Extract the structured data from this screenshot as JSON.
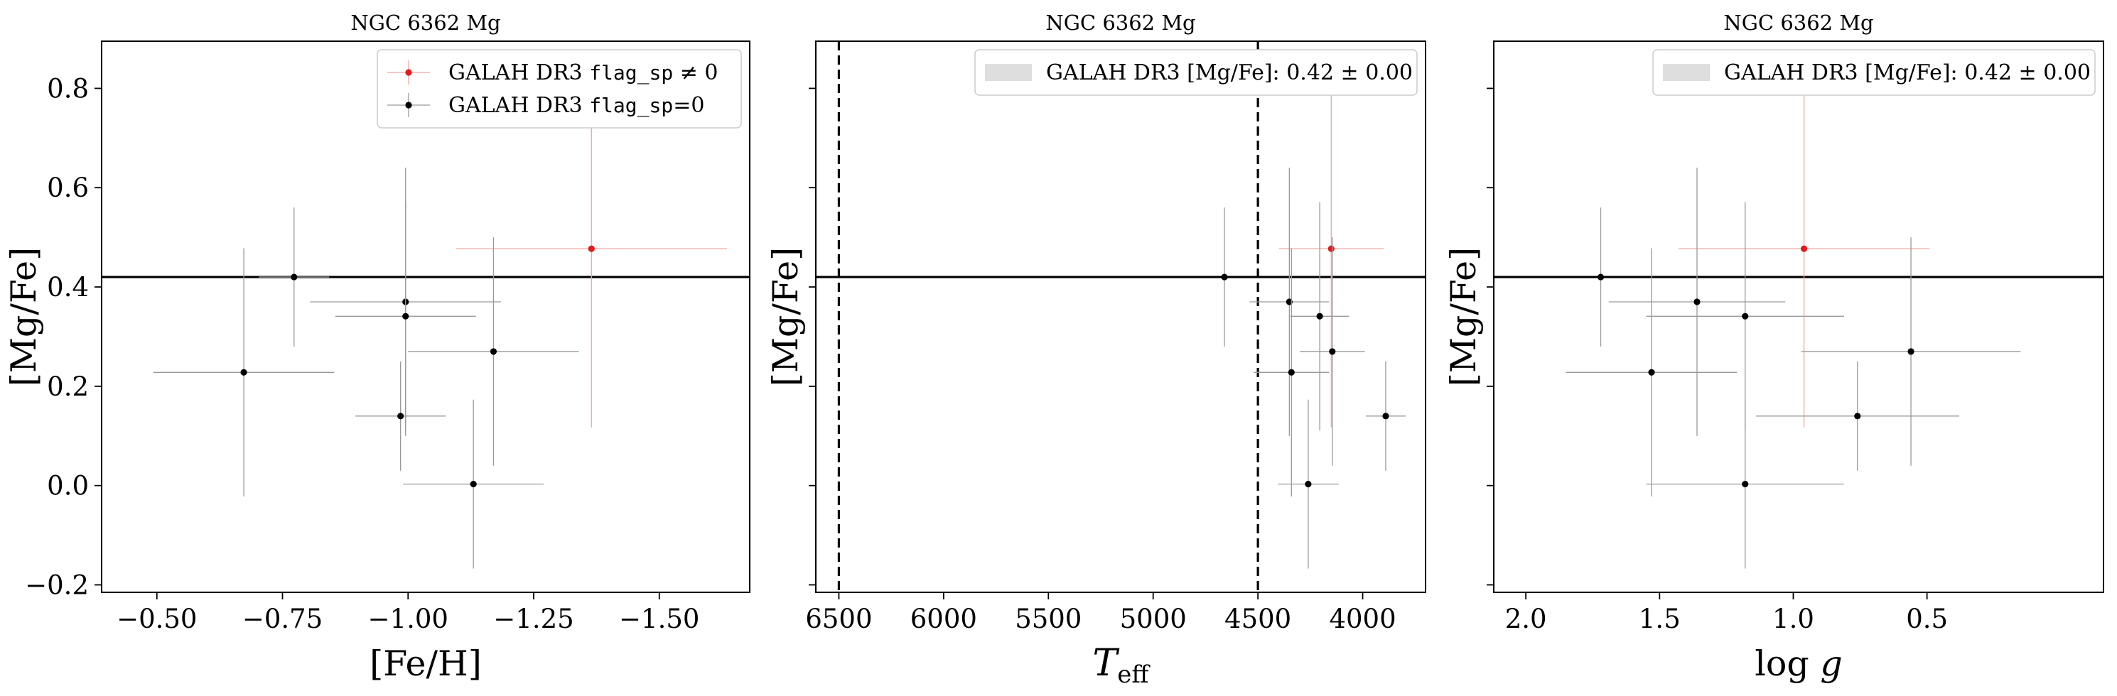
{
  "figure": {
    "layout": "1x3 panels",
    "shared_y_axis": true,
    "panels": 3
  },
  "colors": {
    "flagged": "#e31a1c",
    "flagged_errorbar": "#f2a3a3",
    "unflagged": "#000000",
    "unflagged_errorbar": "#999999",
    "mean_band": "#dedede",
    "mean_line": "#000000",
    "teff_limits": "#000000"
  },
  "chart_data": [
    {
      "type": "scatter",
      "title": "NGC 6362 Mg",
      "xlabel": "[Fe/H]",
      "ylabel": "[Mg/Fe]",
      "x_inverted": true,
      "xlim": [
        -0.39,
        -1.68
      ],
      "ylim": [
        -0.215,
        0.895
      ],
      "xticks": [
        -0.5,
        -0.75,
        -1.0,
        -1.25,
        -1.5
      ],
      "xtick_labels": [
        "−0.50",
        "−0.75",
        "−1.00",
        "−1.25",
        "−1.50"
      ],
      "yticks": [
        -0.2,
        0.0,
        0.2,
        0.4,
        0.6,
        0.8
      ],
      "ytick_labels": [
        "−0.2",
        "0.0",
        "0.2",
        "0.4",
        "0.6",
        "0.8"
      ],
      "show_ytick_labels": true,
      "legend_position": "top-right",
      "legend": [
        {
          "text_prefix": "GALAH DR3 ",
          "text_code": "flag_sp",
          "text_suffix": " ≠ 0",
          "series": "flagged"
        },
        {
          "text_prefix": "GALAH DR3 ",
          "text_code": "flag_sp",
          "text_suffix": "=0",
          "series": "unflagged"
        }
      ],
      "hlines": [
        {
          "y": 0.42,
          "label": ""
        }
      ],
      "vlines": [],
      "series": [
        {
          "name": "GALAH DR3 flag_sp ≠ 0",
          "key": "flagged",
          "points": [
            {
              "x": -1.365,
              "y": 0.477,
              "xerr": 0.27,
              "yerr": 0.36
            }
          ]
        },
        {
          "name": "GALAH DR3 flag_sp=0",
          "key": "unflagged",
          "points": [
            {
              "x": -0.673,
              "y": 0.228,
              "xerr": 0.18,
              "yerr": 0.25
            },
            {
              "x": -0.773,
              "y": 0.42,
              "xerr": 0.07,
              "yerr": 0.14
            },
            {
              "x": -0.985,
              "y": 0.14,
              "xerr": 0.09,
              "yerr": 0.11
            },
            {
              "x": -0.995,
              "y": 0.37,
              "xerr": 0.19,
              "yerr": 0.27
            },
            {
              "x": -0.995,
              "y": 0.341,
              "xerr": 0.14,
              "yerr": 0.23
            },
            {
              "x": -1.13,
              "y": 0.003,
              "xerr": 0.14,
              "yerr": 0.17
            },
            {
              "x": -1.17,
              "y": 0.27,
              "xerr": 0.17,
              "yerr": 0.23
            }
          ]
        }
      ]
    },
    {
      "type": "scatter",
      "title": "NGC 6362 Mg",
      "xlabel": "T_eff",
      "ylabel": "[Mg/Fe]",
      "x_inverted": true,
      "xlim": [
        6610,
        3700
      ],
      "ylim": [
        -0.215,
        0.895
      ],
      "xticks": [
        6500,
        6000,
        5500,
        5000,
        4500,
        4000
      ],
      "xtick_labels": [
        "6500",
        "6000",
        "5500",
        "5000",
        "4500",
        "4000"
      ],
      "yticks": [
        -0.2,
        0.0,
        0.2,
        0.4,
        0.6,
        0.8
      ],
      "show_ytick_labels": false,
      "legend_position": "top-right",
      "legend": [
        {
          "text_prefix": "GALAH DR3 [Mg/Fe]: ",
          "text_code": "",
          "text_suffix": "0.42 ± 0.00",
          "series": "band"
        }
      ],
      "hlines": [
        {
          "y": 0.42,
          "label": ""
        }
      ],
      "vlines": [
        {
          "x": 6500
        },
        {
          "x": 4500
        }
      ],
      "series": [
        {
          "name": "GALAH DR3 flag_sp ≠ 0",
          "key": "flagged",
          "points": [
            {
              "x": 4150,
              "y": 0.477,
              "xerr": 250,
              "yerr": 0.36
            }
          ]
        },
        {
          "name": "GALAH DR3 flag_sp=0",
          "key": "unflagged",
          "points": [
            {
              "x": 4660,
              "y": 0.42,
              "xerr": 0,
              "yerr": 0.14
            },
            {
              "x": 4350,
              "y": 0.37,
              "xerr": 190,
              "yerr": 0.27
            },
            {
              "x": 4205,
              "y": 0.341,
              "xerr": 140,
              "yerr": 0.23
            },
            {
              "x": 4340,
              "y": 0.228,
              "xerr": 180,
              "yerr": 0.25
            },
            {
              "x": 4145,
              "y": 0.27,
              "xerr": 155,
              "yerr": 0.23
            },
            {
              "x": 3890,
              "y": 0.14,
              "xerr": 95,
              "yerr": 0.11
            },
            {
              "x": 4260,
              "y": 0.003,
              "xerr": 145,
              "yerr": 0.17
            }
          ]
        }
      ]
    },
    {
      "type": "scatter",
      "title": "NGC 6362 Mg",
      "xlabel": "log g",
      "ylabel": "[Mg/Fe]",
      "x_inverted": true,
      "xlim": [
        2.12,
        -0.16
      ],
      "ylim": [
        -0.215,
        0.895
      ],
      "xticks": [
        2.0,
        1.5,
        1.0,
        0.5
      ],
      "xtick_labels": [
        "2.0",
        "1.5",
        "1.0",
        "0.5"
      ],
      "yticks": [
        -0.2,
        0.0,
        0.2,
        0.4,
        0.6,
        0.8
      ],
      "show_ytick_labels": false,
      "legend_position": "top-right",
      "legend": [
        {
          "text_prefix": "GALAH DR3 [Mg/Fe]: ",
          "text_code": "",
          "text_suffix": "0.42 ± 0.00",
          "series": "band"
        }
      ],
      "hlines": [
        {
          "y": 0.42,
          "label": ""
        }
      ],
      "vlines": [],
      "series": [
        {
          "name": "GALAH DR3 flag_sp ≠ 0",
          "key": "flagged",
          "points": [
            {
              "x": 0.96,
              "y": 0.477,
              "xerr": 0.47,
              "yerr": 0.36
            }
          ]
        },
        {
          "name": "GALAH DR3 flag_sp=0",
          "key": "unflagged",
          "points": [
            {
              "x": 1.72,
              "y": 0.42,
              "xerr": 0,
              "yerr": 0.14
            },
            {
              "x": 1.36,
              "y": 0.37,
              "xerr": 0.33,
              "yerr": 0.27
            },
            {
              "x": 1.18,
              "y": 0.341,
              "xerr": 0.37,
              "yerr": 0.23
            },
            {
              "x": 1.53,
              "y": 0.228,
              "xerr": 0.32,
              "yerr": 0.25
            },
            {
              "x": 0.56,
              "y": 0.27,
              "xerr": 0.41,
              "yerr": 0.23
            },
            {
              "x": 0.76,
              "y": 0.14,
              "xerr": 0.38,
              "yerr": 0.11
            },
            {
              "x": 1.18,
              "y": 0.003,
              "xerr": 0.37,
              "yerr": 0.17
            }
          ]
        }
      ]
    }
  ]
}
